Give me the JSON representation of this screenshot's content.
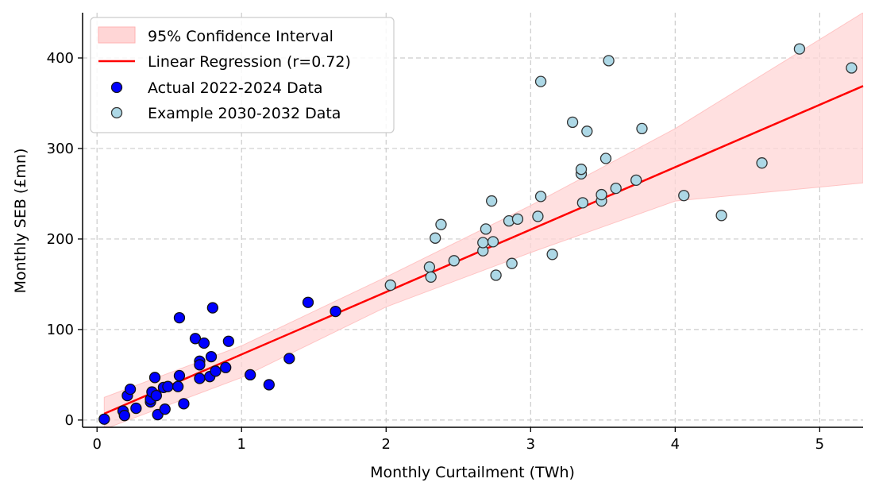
{
  "chart_data": {
    "type": "scatter",
    "xlabel": "Monthly Curtailment (TWh)",
    "ylabel": "Monthly SEB (£mn)",
    "xlim": [
      -0.1,
      5.3
    ],
    "ylim": [
      -8,
      450
    ],
    "xticks": [
      0,
      1,
      2,
      3,
      4,
      5
    ],
    "yticks": [
      0,
      100,
      200,
      300,
      400
    ],
    "grid": true,
    "legend_position": "top-left",
    "legend": {
      "ci_label": "95% Confidence Interval",
      "regression_label": "Linear Regression (r=0.72)",
      "actual_label": "Actual 2022-2024 Data",
      "example_label": "Example 2030-2032 Data"
    },
    "colors": {
      "actual": "#0000ff",
      "example": "#add8e6",
      "regression": "#ff0000",
      "ci_fill": "#ffd6d6"
    },
    "regression": {
      "x": [
        0.05,
        5.3
      ],
      "y": [
        7,
        369
      ]
    },
    "confidence_interval": {
      "x": [
        0.05,
        1.0,
        2.0,
        3.0,
        4.0,
        5.3
      ],
      "upper": [
        25,
        82,
        158,
        237,
        322,
        450
      ],
      "lower": [
        -10,
        47,
        125,
        185,
        242,
        262
      ]
    },
    "series": [
      {
        "name": "Actual 2022-2024 Data",
        "points": [
          [
            0.05,
            1
          ],
          [
            0.18,
            10
          ],
          [
            0.19,
            5
          ],
          [
            0.21,
            27
          ],
          [
            0.23,
            34
          ],
          [
            0.27,
            13
          ],
          [
            0.37,
            20
          ],
          [
            0.37,
            23
          ],
          [
            0.38,
            31
          ],
          [
            0.4,
            47
          ],
          [
            0.41,
            27
          ],
          [
            0.42,
            6
          ],
          [
            0.46,
            36
          ],
          [
            0.47,
            12
          ],
          [
            0.49,
            37
          ],
          [
            0.56,
            37
          ],
          [
            0.57,
            113
          ],
          [
            0.57,
            49
          ],
          [
            0.6,
            18
          ],
          [
            0.68,
            90
          ],
          [
            0.71,
            65
          ],
          [
            0.71,
            46
          ],
          [
            0.71,
            61
          ],
          [
            0.74,
            85
          ],
          [
            0.78,
            48
          ],
          [
            0.79,
            70
          ],
          [
            0.8,
            124
          ],
          [
            0.82,
            54
          ],
          [
            0.89,
            58
          ],
          [
            0.91,
            87
          ],
          [
            1.06,
            50
          ],
          [
            1.19,
            39
          ],
          [
            1.33,
            68
          ],
          [
            1.46,
            130
          ],
          [
            1.65,
            120
          ]
        ]
      },
      {
        "name": "Example 2030-2032 Data",
        "points": [
          [
            2.03,
            149
          ],
          [
            2.3,
            169
          ],
          [
            2.31,
            158
          ],
          [
            2.34,
            201
          ],
          [
            2.38,
            216
          ],
          [
            2.47,
            176
          ],
          [
            2.67,
            187
          ],
          [
            2.67,
            196
          ],
          [
            2.69,
            211
          ],
          [
            2.73,
            242
          ],
          [
            2.74,
            197
          ],
          [
            2.76,
            160
          ],
          [
            2.85,
            220
          ],
          [
            2.87,
            173
          ],
          [
            2.91,
            222
          ],
          [
            3.05,
            225
          ],
          [
            3.07,
            374
          ],
          [
            3.07,
            247
          ],
          [
            3.15,
            183
          ],
          [
            3.29,
            329
          ],
          [
            3.35,
            272
          ],
          [
            3.35,
            277
          ],
          [
            3.36,
            240
          ],
          [
            3.39,
            319
          ],
          [
            3.49,
            242
          ],
          [
            3.49,
            249
          ],
          [
            3.52,
            289
          ],
          [
            3.54,
            397
          ],
          [
            3.59,
            256
          ],
          [
            3.73,
            265
          ],
          [
            3.77,
            322
          ],
          [
            4.06,
            248
          ],
          [
            4.32,
            226
          ],
          [
            4.6,
            284
          ],
          [
            4.86,
            410
          ],
          [
            5.22,
            389
          ]
        ]
      }
    ]
  }
}
